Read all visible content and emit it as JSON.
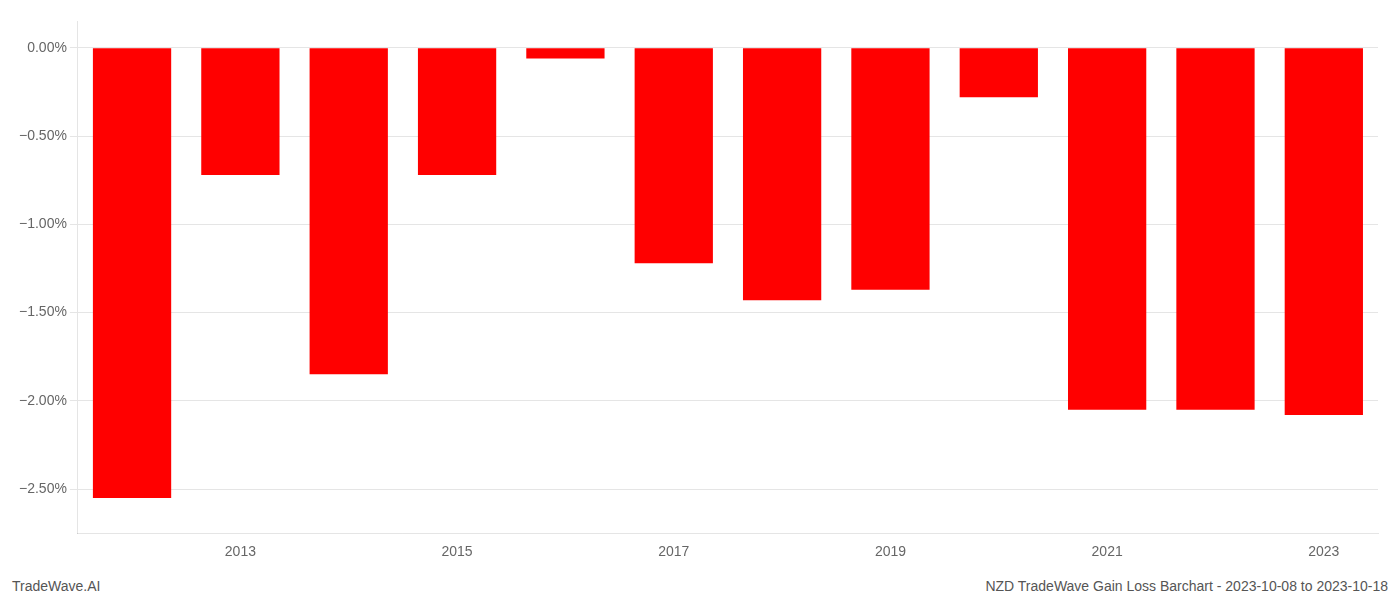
{
  "chart_data": {
    "type": "bar",
    "categories": [
      null,
      "2013",
      null,
      "2015",
      null,
      "2017",
      null,
      "2019",
      null,
      "2021",
      null,
      "2023"
    ],
    "values": [
      -2.55,
      -0.72,
      -1.85,
      -0.72,
      -0.06,
      -1.22,
      -1.43,
      -1.37,
      -0.28,
      -2.05,
      -2.05,
      -2.08
    ],
    "color": "#ff0000",
    "ylim": [
      -2.75,
      0.15
    ],
    "yticks": [
      {
        "value": 0.0,
        "label": "0.00%"
      },
      {
        "value": -0.5,
        "label": "−0.50%"
      },
      {
        "value": -1.0,
        "label": "−1.00%"
      },
      {
        "value": -1.5,
        "label": "−1.50%"
      },
      {
        "value": -2.0,
        "label": "−2.00%"
      },
      {
        "value": -2.5,
        "label": "−2.50%"
      }
    ],
    "grid": true,
    "annotations": [
      "TradeWave.AI",
      "NZD TradeWave Gain Loss Barchart - 2023-10-08 to 2023-10-18"
    ]
  }
}
